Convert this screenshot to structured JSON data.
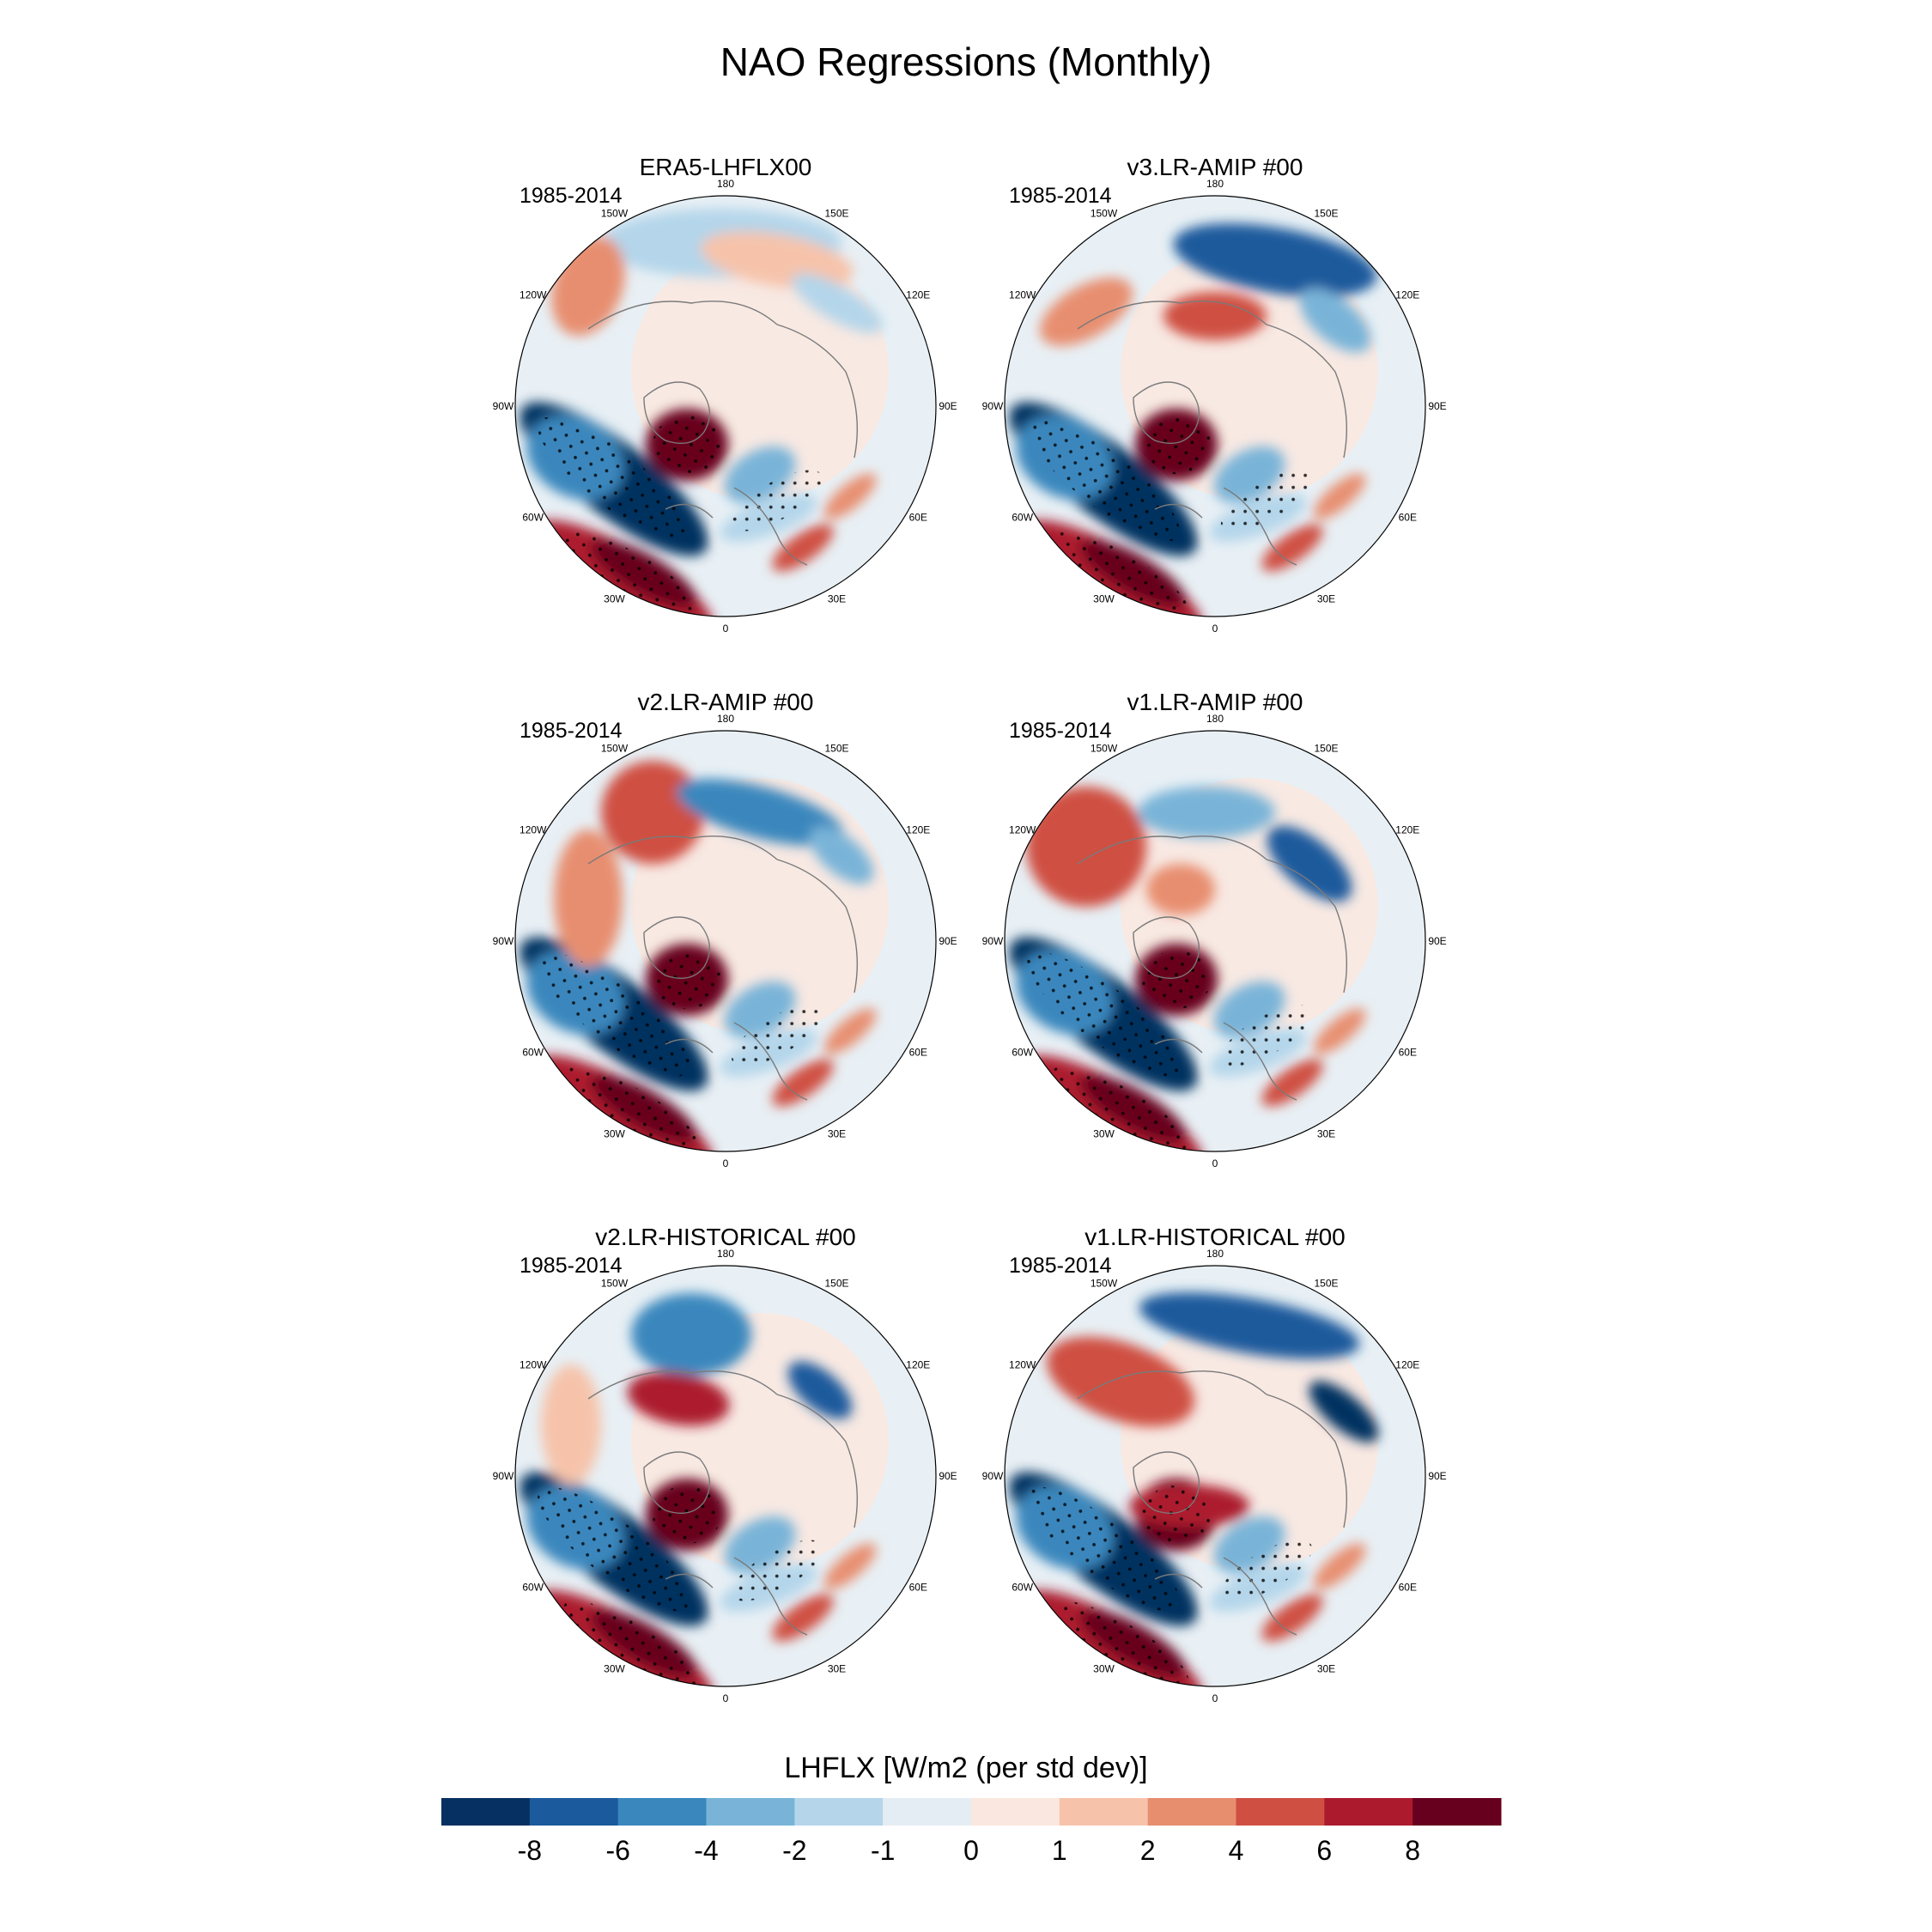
{
  "chart_data": {
    "type": "heatmap",
    "projection": "north-polar-stereographic",
    "title": "NAO Regressions (Monthly)",
    "longitude_labels": [
      "180",
      "150E",
      "120E",
      "90E",
      "60E",
      "30E",
      "0",
      "30W",
      "60W",
      "90W",
      "120W",
      "150W"
    ],
    "panels": [
      {
        "title": "ERA5-LHFLX00",
        "period": "1985-2014"
      },
      {
        "title": "v3.LR-AMIP  #00",
        "period": "1985-2014"
      },
      {
        "title": "v2.LR-AMIP  #00",
        "period": "1985-2014"
      },
      {
        "title": "v1.LR-AMIP  #00",
        "period": "1985-2014"
      },
      {
        "title": "v2.LR-HISTORICAL  #00",
        "period": "1985-2014"
      },
      {
        "title": "v1.LR-HISTORICAL  #00",
        "period": "1985-2014"
      }
    ],
    "colorbar": {
      "label": "LHFLX [W/m2 (per std dev)]",
      "levels": [
        "-8",
        "-6",
        "-4",
        "-2",
        "-1",
        "0",
        "1",
        "2",
        "4",
        "6",
        "8"
      ],
      "colors": [
        "#053061",
        "#1b5a9c",
        "#3a87bd",
        "#79b4d8",
        "#b4d5ea",
        "#e4edf3",
        "#fae7df",
        "#f6c3aa",
        "#e78e6f",
        "#cf4f43",
        "#ac1a2d",
        "#67001f"
      ]
    }
  },
  "colors": {
    "ocean_neutral": "#e8f0f5",
    "outline": "#000000",
    "coast": "#7a7a7a"
  }
}
